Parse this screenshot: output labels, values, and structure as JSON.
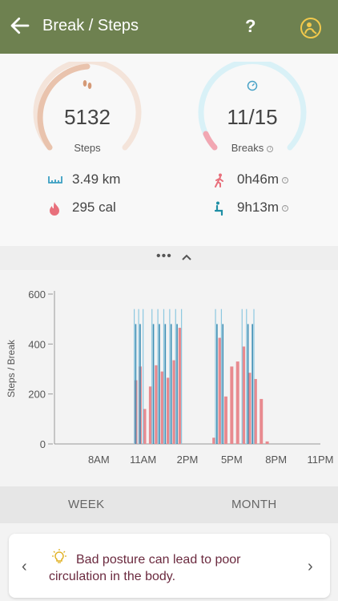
{
  "header": {
    "title": "Break / Steps",
    "help_label": "?"
  },
  "steps_gauge": {
    "value": "5132",
    "label": "Steps"
  },
  "breaks_gauge": {
    "value": "11/15",
    "label": "Breaks",
    "progress": 0.73
  },
  "metrics": {
    "distance": "3.49 km",
    "calories": "295 cal",
    "active_time": "0h46m",
    "sitting_time": "9h13m"
  },
  "toggle": {
    "dots": "•••"
  },
  "tabs": {
    "week": "WEEK",
    "month": "MONTH"
  },
  "tip": {
    "text": "Bad posture can lead to poor circulation in the body."
  },
  "colors": {
    "appbar": "#6e8150",
    "steps": "#e88a8f",
    "breaks": "#6fb3d2",
    "tip_text": "#6b2a3f"
  },
  "chart_data": {
    "type": "bar",
    "ylabel": "Steps / Break",
    "ylim": [
      0,
      600
    ],
    "yticks": [
      "0",
      "200",
      "400",
      "600"
    ],
    "xticks": [
      "8AM",
      "11AM",
      "2PM",
      "5PM",
      "8PM",
      "11PM"
    ],
    "series": [
      {
        "name": "steps",
        "points": [
          {
            "h": 10.5,
            "v": 255
          },
          {
            "h": 10.8,
            "v": 310
          },
          {
            "h": 11.1,
            "v": 140
          },
          {
            "h": 11.5,
            "v": 230
          },
          {
            "h": 11.9,
            "v": 315
          },
          {
            "h": 12.3,
            "v": 290
          },
          {
            "h": 12.7,
            "v": 265
          },
          {
            "h": 13.1,
            "v": 335
          },
          {
            "h": 13.5,
            "v": 465
          },
          {
            "h": 15.8,
            "v": 25
          },
          {
            "h": 16.2,
            "v": 425
          },
          {
            "h": 16.6,
            "v": 190
          },
          {
            "h": 17.0,
            "v": 310
          },
          {
            "h": 17.4,
            "v": 330
          },
          {
            "h": 17.8,
            "v": 390
          },
          {
            "h": 18.2,
            "v": 285
          },
          {
            "h": 18.6,
            "v": 260
          },
          {
            "h": 19.0,
            "v": 180
          },
          {
            "h": 19.4,
            "v": 10
          }
        ]
      },
      {
        "name": "breaks",
        "points": [
          {
            "h": 10.5,
            "v": 480
          },
          {
            "h": 10.8,
            "v": 480
          },
          {
            "h": 11.7,
            "v": 480
          },
          {
            "h": 12.1,
            "v": 480
          },
          {
            "h": 12.5,
            "v": 480
          },
          {
            "h": 12.9,
            "v": 480
          },
          {
            "h": 13.3,
            "v": 480
          },
          {
            "h": 16.0,
            "v": 480
          },
          {
            "h": 16.4,
            "v": 480
          },
          {
            "h": 18.1,
            "v": 480
          },
          {
            "h": 18.4,
            "v": 480
          }
        ]
      },
      {
        "name": "breaks-target",
        "points": [
          {
            "h": 10.4,
            "v": 540
          },
          {
            "h": 10.7,
            "v": 540
          },
          {
            "h": 11.0,
            "v": 540
          },
          {
            "h": 11.6,
            "v": 540
          },
          {
            "h": 12.0,
            "v": 540
          },
          {
            "h": 12.4,
            "v": 540
          },
          {
            "h": 12.8,
            "v": 540
          },
          {
            "h": 13.2,
            "v": 540
          },
          {
            "h": 13.6,
            "v": 540
          },
          {
            "h": 15.9,
            "v": 540
          },
          {
            "h": 16.3,
            "v": 540
          },
          {
            "h": 17.7,
            "v": 540
          },
          {
            "h": 18.0,
            "v": 540
          },
          {
            "h": 18.5,
            "v": 540
          }
        ]
      }
    ]
  }
}
